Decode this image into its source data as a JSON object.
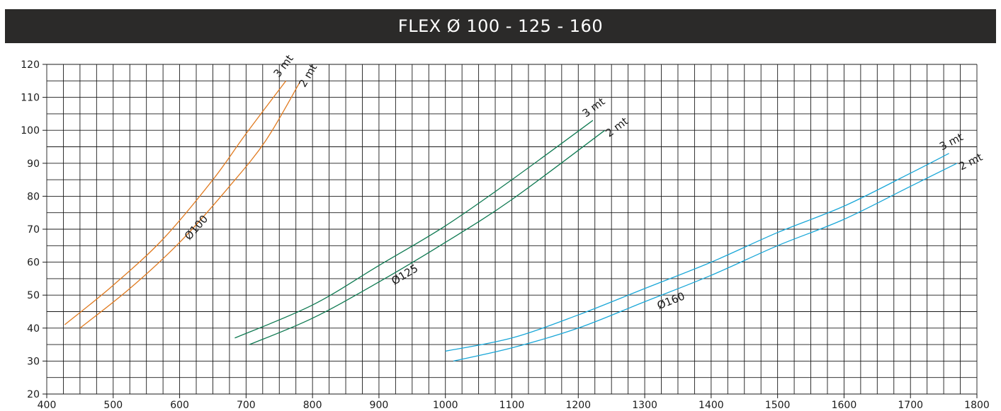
{
  "header": {
    "title": "FLEX  Ø 100 - 125 - 160"
  },
  "chart_data": {
    "type": "line",
    "title": "FLEX  Ø 100 - 125 - 160",
    "xlabel": "",
    "ylabel": "",
    "xlim": [
      400,
      1800
    ],
    "ylim": [
      20,
      120
    ],
    "x_ticks": [
      400,
      500,
      600,
      700,
      800,
      900,
      1000,
      1100,
      1200,
      1300,
      1400,
      1500,
      1600,
      1700,
      1800
    ],
    "y_ticks": [
      20,
      30,
      40,
      50,
      60,
      70,
      80,
      90,
      100,
      110,
      120
    ],
    "grid": true,
    "series": [
      {
        "name": "Ø100",
        "length_label": "3 mt",
        "color": "#e07a1f",
        "x": [
          427,
          500,
          575,
          650,
          700,
          760
        ],
        "y": [
          41,
          53,
          67,
          85,
          99,
          115
        ]
      },
      {
        "name": "Ø100",
        "length_label": "2 mt",
        "color": "#e07a1f",
        "x": [
          450,
          525,
          600,
          675,
          730,
          782
        ],
        "y": [
          40,
          52,
          66,
          83,
          97,
          115
        ]
      },
      {
        "name": "Ø125",
        "length_label": "3 mt",
        "color": "#0f7a52",
        "x": [
          683,
          800,
          900,
          1000,
          1100,
          1222
        ],
        "y": [
          37,
          47,
          59,
          71,
          85,
          103
        ]
      },
      {
        "name": "Ø125",
        "length_label": "2 mt",
        "color": "#0f7a52",
        "x": [
          705,
          800,
          900,
          1000,
          1100,
          1240
        ],
        "y": [
          35,
          43,
          54,
          66,
          79,
          100
        ]
      },
      {
        "name": "Ø160",
        "length_label": "3 mt",
        "color": "#1aa7d8",
        "x": [
          1000,
          1100,
          1200,
          1300,
          1400,
          1500,
          1600,
          1700,
          1758
        ],
        "y": [
          33,
          37,
          44,
          52,
          60,
          69,
          77,
          87,
          93
        ]
      },
      {
        "name": "Ø160",
        "length_label": "2 mt",
        "color": "#1aa7d8",
        "x": [
          1012,
          1100,
          1200,
          1300,
          1400,
          1500,
          1600,
          1700,
          1770
        ],
        "y": [
          30,
          34,
          40,
          48,
          56,
          65,
          73,
          83,
          90
        ]
      }
    ]
  }
}
